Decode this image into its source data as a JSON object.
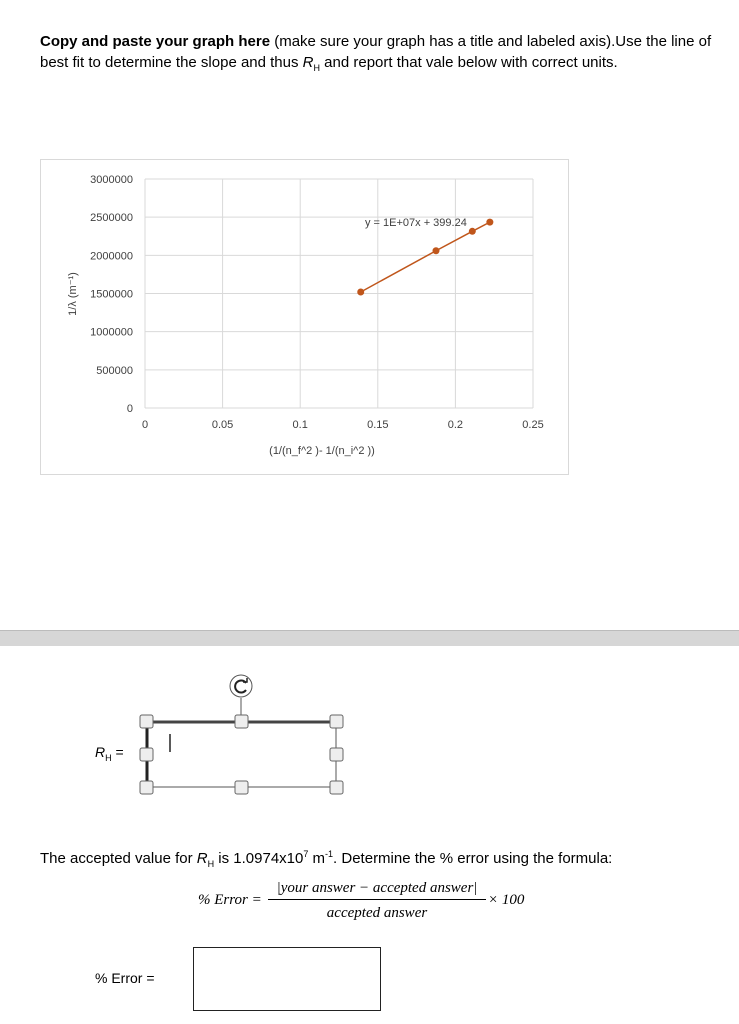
{
  "instructions": {
    "bold_part": "Copy and paste your graph here",
    "rest_line1": " (make sure your graph has a title and labeled axis).Use the line of best fit to determine the slope and thus ",
    "rh_symbol": "R",
    "rh_sub": "H",
    "rest_line2": " and report that vale below with correct units."
  },
  "chart_data": {
    "type": "scatter",
    "title": "",
    "xlabel": "(1/(n_f^2 )- 1/(n_i^2 ))",
    "ylabel": "1/λ (m⁻¹)",
    "xlim": [
      0,
      0.25
    ],
    "ylim": [
      0,
      3000000
    ],
    "x_ticks": [
      "0",
      "0.05",
      "0.1",
      "0.15",
      "0.2",
      "0.25"
    ],
    "y_ticks": [
      "0",
      "500000",
      "1000000",
      "1500000",
      "2000000",
      "2500000",
      "3000000"
    ],
    "grid": true,
    "points": [
      {
        "x": 0.139,
        "y": 1520000
      },
      {
        "x": 0.1875,
        "y": 2060000
      },
      {
        "x": 0.2109,
        "y": 2315000
      },
      {
        "x": 0.2222,
        "y": 2435000
      }
    ],
    "trendline_equation": "y = 1E+07x + 399.24",
    "series_color": "#c0561b"
  },
  "rh_answer": {
    "label_symbol": "R",
    "label_sub": "H",
    "label_eq": " =",
    "value": ""
  },
  "accepted": {
    "text1": "The accepted value for ",
    "symbol": "R",
    "sub": "H",
    "text2": " is 1.0974x10",
    "exp": "7",
    "text3": " m",
    "unit_exp": "-1",
    "text4": ". Determine the % error using the formula:"
  },
  "formula": {
    "lhs": "% Error =",
    "numerator": "|your answer − accepted answer|",
    "denominator": "accepted answer",
    "multiplier": "× 100"
  },
  "percent_error": {
    "label": "% Error =",
    "value": ""
  }
}
